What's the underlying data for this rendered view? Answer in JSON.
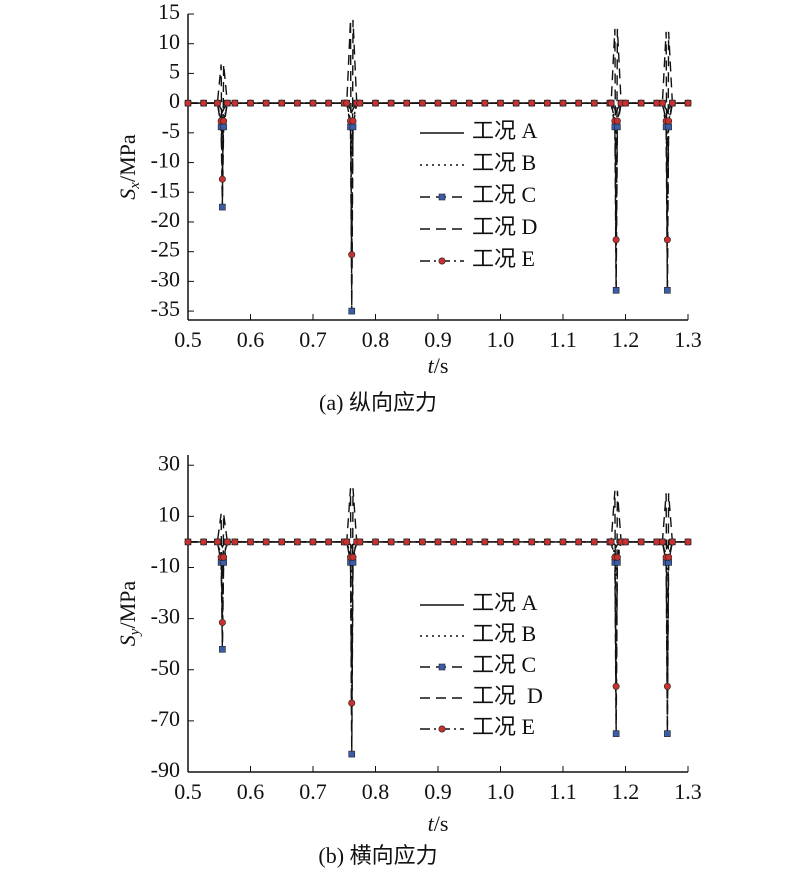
{
  "chart_data": [
    {
      "type": "line",
      "caption": "(a) 纵向应力",
      "xlabel": {
        "symbol": "t",
        "unit": "/s"
      },
      "ylabel": {
        "symbol": "S",
        "subscript": "x",
        "unit": "/MPa"
      },
      "xlim": [
        0.5,
        1.3
      ],
      "xticks": [
        0.5,
        0.6,
        0.7,
        0.8,
        0.9,
        {
          "value": 1,
          "label": "1.0"
        },
        1.1,
        1.2,
        1.3
      ],
      "ylim": [
        -36.5,
        15
      ],
      "yticks": [
        15,
        10,
        5,
        0,
        -5,
        -10,
        -15,
        -20,
        -25,
        -30,
        -35
      ],
      "legend": "right",
      "x": [
        0.5,
        0.525,
        0.547,
        0.553,
        0.555,
        0.557,
        0.563,
        0.575,
        0.6,
        0.625,
        0.65,
        0.675,
        0.7,
        0.725,
        0.75,
        0.754,
        0.76,
        0.762,
        0.764,
        0.77,
        0.775,
        0.8,
        0.825,
        0.85,
        0.875,
        0.9,
        0.925,
        0.95,
        0.975,
        1.0,
        1.025,
        1.05,
        1.075,
        1.1,
        1.125,
        1.15,
        1.175,
        1.177,
        1.183,
        1.185,
        1.187,
        1.193,
        1.2,
        1.225,
        1.25,
        1.259,
        1.265,
        1.267,
        1.269,
        1.275,
        1.3
      ],
      "series": [
        {
          "name": "工况 A",
          "color": "#111111",
          "line_style": "solid",
          "values": [
            0,
            0,
            0,
            -1,
            -1.5,
            -1,
            0,
            0,
            0,
            0,
            0,
            0,
            0,
            0,
            0,
            0,
            -1,
            -1.5,
            -1,
            0,
            0,
            0,
            0,
            0,
            0,
            0,
            0,
            0,
            0,
            0,
            0,
            0,
            0,
            0,
            0,
            0,
            0,
            0,
            -1,
            -1.5,
            -1,
            0,
            0,
            0,
            0,
            0,
            -1,
            -1.5,
            -1,
            0,
            0
          ]
        },
        {
          "name": "工况 B",
          "color": "#111111",
          "line_style": "dotted",
          "values": [
            0,
            0,
            0,
            -3,
            -6,
            -3,
            0,
            0,
            0,
            0,
            0,
            0,
            0,
            0,
            0,
            0,
            -3,
            -8,
            -3,
            0,
            0,
            0,
            0,
            0,
            0,
            0,
            0,
            0,
            0,
            0,
            0,
            0,
            0,
            0,
            0,
            0,
            0,
            0,
            -3,
            -7,
            -3,
            0,
            0,
            0,
            0,
            0,
            -3,
            -7,
            -3,
            0,
            0
          ]
        },
        {
          "name": "工况 C",
          "color": "#111111",
          "line_style": "dashed",
          "marker": "square",
          "marker_color": "#3b5ca8",
          "values": [
            0,
            0,
            0,
            -4,
            -17.5,
            -4,
            0,
            0,
            0,
            0,
            0,
            0,
            0,
            0,
            0,
            0,
            -4,
            -35,
            -4,
            0,
            0,
            0,
            0,
            0,
            0,
            0,
            0,
            0,
            0,
            0,
            0,
            0,
            0,
            0,
            0,
            0,
            0,
            0,
            -4,
            -31.5,
            -4,
            0,
            0,
            0,
            0,
            0,
            -4,
            -31.5,
            -4,
            0,
            0
          ]
        },
        {
          "name": "工况 D",
          "color": "#111111",
          "line_style": "dashed",
          "values": [
            0,
            0,
            0,
            6.5,
            -17,
            6.5,
            0,
            0,
            0,
            0,
            0,
            0,
            0,
            0,
            0,
            0,
            14,
            -34,
            14,
            0,
            0,
            0,
            0,
            0,
            0,
            0,
            0,
            0,
            0,
            0,
            0,
            0,
            0,
            0,
            0,
            0,
            0,
            0,
            12.5,
            -31,
            12.5,
            0,
            0,
            0,
            0,
            0,
            12,
            -31,
            12,
            0,
            0
          ]
        },
        {
          "name": "工况 E",
          "color": "#111111",
          "line_style": "dashdot",
          "marker": "circle",
          "marker_color": "#c8312f",
          "values": [
            0,
            0,
            0,
            -3,
            -12.8,
            -3,
            0,
            0,
            0,
            0,
            0,
            0,
            0,
            0,
            0,
            0,
            -3,
            -25.5,
            -3,
            0,
            0,
            0,
            0,
            0,
            0,
            0,
            0,
            0,
            0,
            0,
            0,
            0,
            0,
            0,
            0,
            0,
            0,
            0,
            -3,
            -23,
            -3,
            0,
            0,
            0,
            0,
            0,
            -3,
            -23,
            -3,
            0,
            0
          ]
        }
      ]
    },
    {
      "type": "line",
      "caption": "(b) 横向应力",
      "xlabel": {
        "symbol": "t",
        "unit": "/s"
      },
      "ylabel": {
        "symbol": "S",
        "subscript": "y",
        "unit": "/MPa"
      },
      "xlim": [
        0.5,
        1.3
      ],
      "xticks": [
        0.5,
        0.6,
        0.7,
        0.8,
        0.9,
        {
          "value": 1,
          "label": "1.0"
        },
        1.1,
        1.2,
        1.3
      ],
      "ylim": [
        -90,
        34
      ],
      "yticks": [
        30,
        10,
        -10,
        -30,
        -50,
        -70,
        -90
      ],
      "legend": "right",
      "x": [
        0.5,
        0.525,
        0.547,
        0.553,
        0.555,
        0.557,
        0.563,
        0.575,
        0.6,
        0.625,
        0.65,
        0.675,
        0.7,
        0.725,
        0.75,
        0.754,
        0.76,
        0.762,
        0.764,
        0.77,
        0.775,
        0.8,
        0.825,
        0.85,
        0.875,
        0.9,
        0.925,
        0.95,
        0.975,
        1.0,
        1.025,
        1.05,
        1.075,
        1.1,
        1.125,
        1.15,
        1.175,
        1.177,
        1.183,
        1.185,
        1.187,
        1.193,
        1.2,
        1.225,
        1.25,
        1.259,
        1.265,
        1.267,
        1.269,
        1.275,
        1.3
      ],
      "series": [
        {
          "name": "工况 A",
          "color": "#111111",
          "line_style": "solid",
          "values": [
            0,
            0,
            0,
            -1,
            -2,
            -1,
            0,
            0,
            0,
            0,
            0,
            0,
            0,
            0,
            0,
            0,
            -1,
            -2,
            -1,
            0,
            0,
            0,
            0,
            0,
            0,
            0,
            0,
            0,
            0,
            0,
            0,
            0,
            0,
            0,
            0,
            0,
            0,
            0,
            -1,
            -2,
            -1,
            0,
            0,
            0,
            0,
            0,
            -1,
            -2,
            -1,
            0,
            0
          ]
        },
        {
          "name": "工况 B",
          "color": "#111111",
          "line_style": "dotted",
          "values": [
            0,
            0,
            0,
            -5,
            -12,
            -5,
            0,
            0,
            0,
            0,
            0,
            0,
            0,
            0,
            0,
            0,
            -5,
            -15,
            -5,
            0,
            0,
            0,
            0,
            0,
            0,
            0,
            0,
            0,
            0,
            0,
            0,
            0,
            0,
            0,
            0,
            0,
            0,
            0,
            -5,
            -14,
            -5,
            0,
            0,
            0,
            0,
            0,
            -5,
            -14,
            -5,
            0,
            0
          ]
        },
        {
          "name": "工况 C",
          "color": "#111111",
          "line_style": "dashed",
          "marker": "square",
          "marker_color": "#3b5ca8",
          "values": [
            0,
            0,
            0,
            -8,
            -42,
            -8,
            0,
            0,
            0,
            0,
            0,
            0,
            0,
            0,
            0,
            0,
            -8,
            -83,
            -8,
            0,
            0,
            0,
            0,
            0,
            0,
            0,
            0,
            0,
            0,
            0,
            0,
            0,
            0,
            0,
            0,
            0,
            0,
            0,
            -8,
            -75,
            -8,
            0,
            0,
            0,
            0,
            0,
            -8,
            -75,
            -8,
            0,
            0
          ]
        },
        {
          "name": "工况  D",
          "color": "#111111",
          "line_style": "dashed",
          "values": [
            0,
            0,
            0,
            11,
            -40,
            11,
            0,
            0,
            0,
            0,
            0,
            0,
            0,
            0,
            0,
            0,
            21,
            -81,
            21,
            0,
            0,
            0,
            0,
            0,
            0,
            0,
            0,
            0,
            0,
            0,
            0,
            0,
            0,
            0,
            0,
            0,
            0,
            0,
            20,
            -73,
            20,
            0,
            0,
            0,
            0,
            0,
            19,
            -73,
            19,
            0,
            0
          ]
        },
        {
          "name": "工况 E",
          "color": "#111111",
          "line_style": "dashdot",
          "marker": "circle",
          "marker_color": "#c8312f",
          "values": [
            0,
            0,
            0,
            -6,
            -31.5,
            -6,
            0,
            0,
            0,
            0,
            0,
            0,
            0,
            0,
            0,
            0,
            -6,
            -63,
            -6,
            0,
            0,
            0,
            0,
            0,
            0,
            0,
            0,
            0,
            0,
            0,
            0,
            0,
            0,
            0,
            0,
            0,
            0,
            0,
            -6,
            -56.5,
            -6,
            0,
            0,
            0,
            0,
            0,
            -6,
            -56.5,
            -6,
            0,
            0
          ]
        }
      ]
    }
  ]
}
